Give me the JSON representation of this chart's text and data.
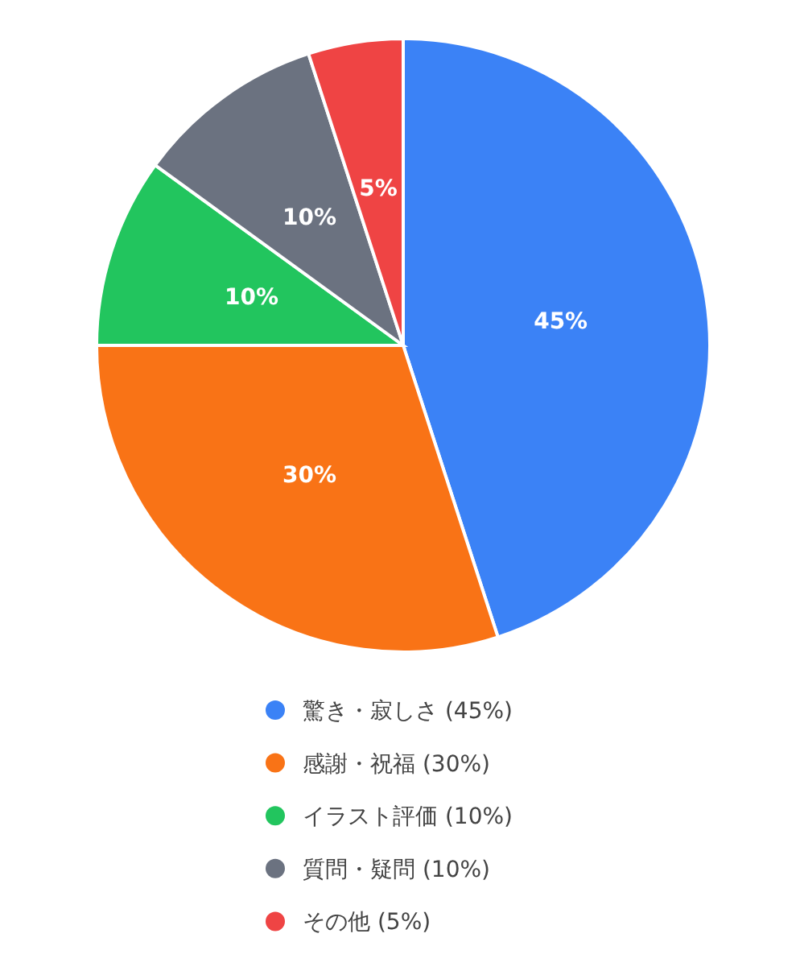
{
  "chart_data": {
    "type": "pie",
    "categories": [
      "驚き・寂しさ (45%)",
      "感謝・祝福 (30%)",
      "イラスト評価 (10%)",
      "質問・疑問 (10%)",
      "その他 (5%)"
    ],
    "values": [
      45,
      30,
      10,
      10,
      5
    ],
    "colors": [
      "#3b82f6",
      "#f97316",
      "#22c55e",
      "#6b7280",
      "#ef4444"
    ],
    "value_labels": [
      "45%",
      "30%",
      "10%",
      "10%",
      "5%"
    ],
    "legend": "bottom"
  }
}
